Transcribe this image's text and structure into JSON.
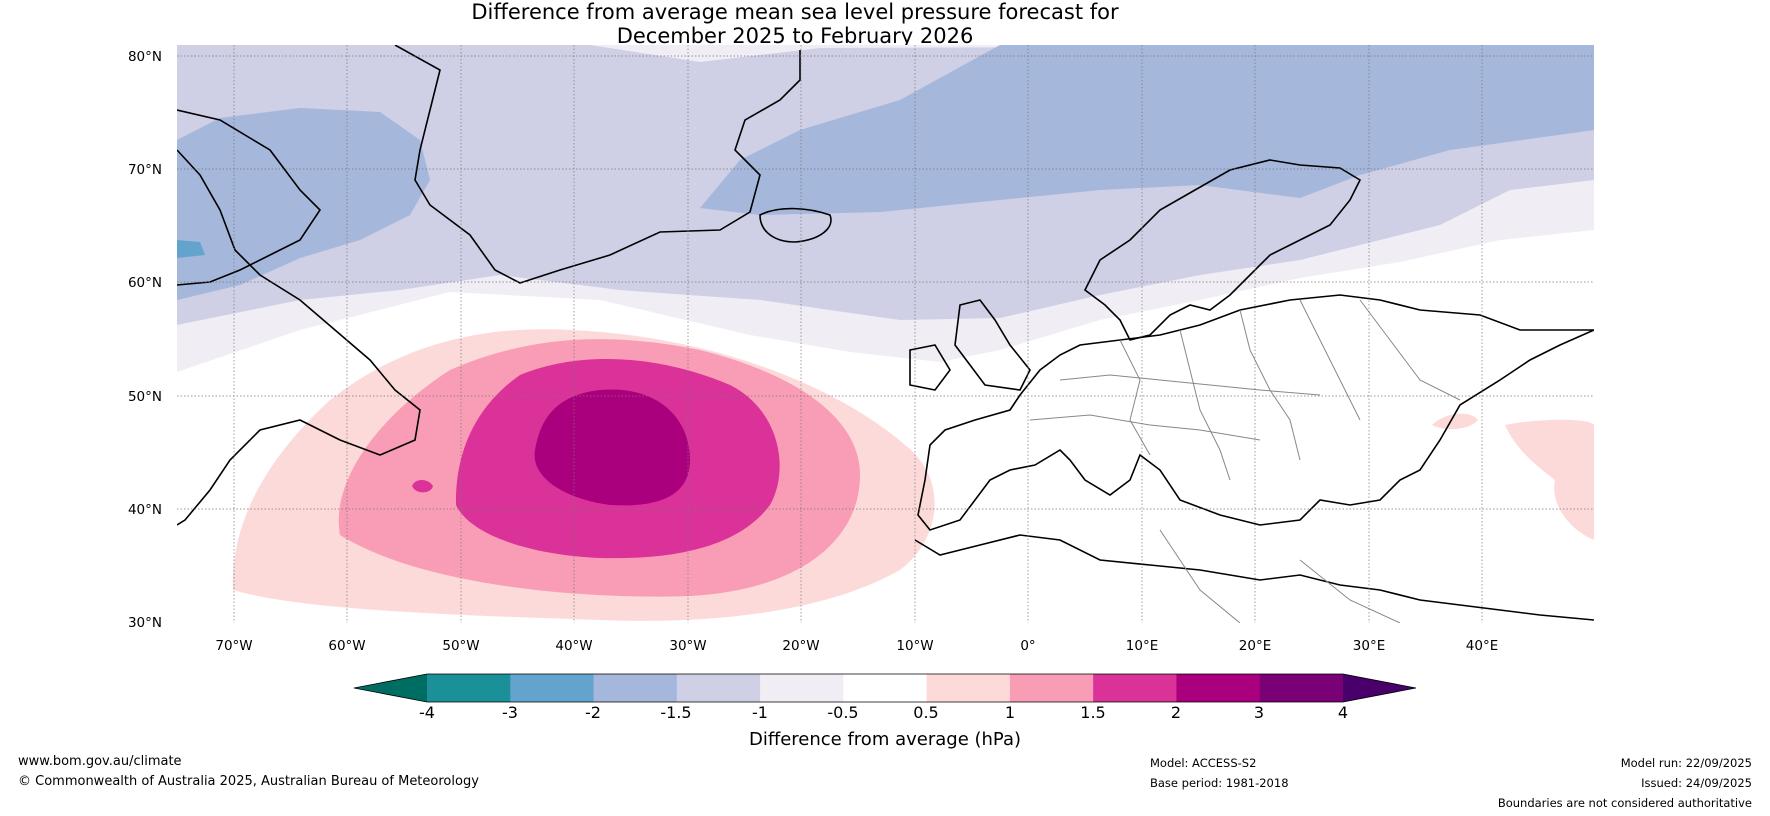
{
  "title": {
    "line1": "Difference from average mean sea level pressure forecast for",
    "line2": "December 2025 to February 2026"
  },
  "axes": {
    "lat_labels": [
      "80°N",
      "70°N",
      "60°N",
      "50°N",
      "40°N",
      "30°N"
    ],
    "lon_labels": [
      "70°W",
      "60°W",
      "50°W",
      "40°W",
      "30°W",
      "20°W",
      "10°W",
      "0°",
      "10°E",
      "20°E",
      "30°E",
      "40°E"
    ],
    "lat_range": [
      30,
      80
    ],
    "lon_range": [
      -75,
      50
    ]
  },
  "colorbar": {
    "label": "Difference from average (hPa)",
    "ticks": [
      "-4",
      "-3",
      "-2",
      "-1.5",
      "-1",
      "-0.5",
      "0.5",
      "1",
      "1.5",
      "2",
      "3",
      "4"
    ],
    "colors": [
      "#006d63",
      "#1b9098",
      "#62a4cd",
      "#a5b7da",
      "#cfcfe6",
      "#f1edf4",
      "#ffffff",
      "#fddada",
      "#f99db7",
      "#db3299",
      "#ab007d",
      "#7a0076",
      "#49006a"
    ]
  },
  "footer": {
    "website": "www.bom.gov.au/climate",
    "copyright": "© Commonwealth of Australia 2025, Australian Bureau of Meteorology",
    "model": "Model: ACCESS-S2",
    "base_period": "Base period: 1981-2018",
    "model_run": "Model run: 22/09/2025",
    "issued": "Issued: 24/09/2025",
    "disclaimer": "Boundaries are not considered authoritative"
  }
}
